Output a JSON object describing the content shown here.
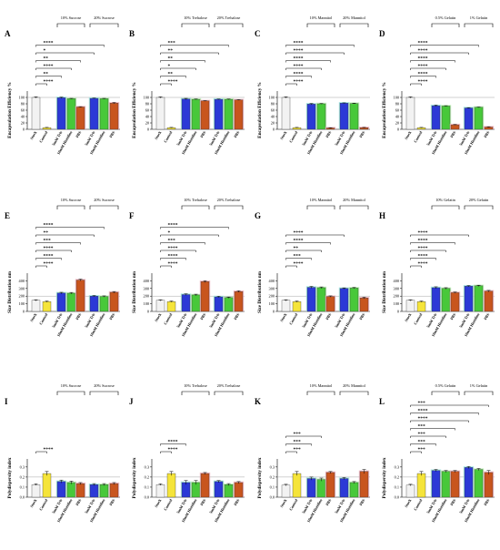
{
  "panels": [
    {
      "letter": "A",
      "ylabel": "Encapsulation Efficiency %",
      "yticks": [
        "0",
        "20",
        "40",
        "60",
        "80",
        "100"
      ],
      "ymax": 120,
      "ref": 100,
      "groups": [
        "10% Sucrose",
        "20% Sucrose"
      ],
      "stars": [
        "****",
        "**",
        "****",
        "**",
        "*",
        "****"
      ]
    },
    {
      "letter": "B",
      "ylabel": "Encapsulation Efficiency %",
      "yticks": [
        "0",
        "20",
        "40",
        "60",
        "80",
        "100"
      ],
      "ymax": 120,
      "ref": 100,
      "groups": [
        "10% Trehalose",
        "20% Trehalose"
      ],
      "stars": [
        "****",
        "**",
        "*",
        "**",
        "**",
        "***"
      ]
    },
    {
      "letter": "C",
      "ylabel": "Encapsulation Efficiency %",
      "yticks": [
        "0",
        "20",
        "40",
        "60",
        "80",
        "100"
      ],
      "ymax": 120,
      "ref": 100,
      "groups": [
        "10% Mannitol",
        "20% Mannitol"
      ],
      "stars": [
        "****",
        "****",
        "****",
        "****",
        "****",
        "****"
      ]
    },
    {
      "letter": "D",
      "ylabel": "Encapsulation Efficiency %",
      "yticks": [
        "0",
        "20",
        "40",
        "60",
        "80",
        "100"
      ],
      "ymax": 120,
      "ref": 100,
      "groups": [
        "0.5% Gelatin",
        "1% Gelatin"
      ],
      "stars": [
        "****",
        "****",
        "****",
        "****",
        "****",
        "****"
      ]
    },
    {
      "letter": "E",
      "ylabel": "Size Distribution nm",
      "yticks": [
        "0",
        "100",
        "200",
        "300",
        "400"
      ],
      "ymax": 500,
      "ref": 200,
      "groups": [
        "10% Sucrose",
        "20% Sucrose"
      ],
      "stars": [
        "****",
        "****",
        "****",
        "***",
        "**",
        "****"
      ]
    },
    {
      "letter": "F",
      "ylabel": "Size Distribution nm",
      "yticks": [
        "0",
        "100",
        "200",
        "300",
        "400"
      ],
      "ymax": 500,
      "ref": 200,
      "groups": [
        "10% Trehalose",
        "20% Trehalose"
      ],
      "stars": [
        "****",
        "****",
        "****",
        "***",
        "*",
        "****"
      ]
    },
    {
      "letter": "G",
      "ylabel": "Size Distribution nm",
      "yticks": [
        "0",
        "100",
        "200",
        "300",
        "400"
      ],
      "ymax": 500,
      "ref": 200,
      "groups": [
        "10% Mannitol",
        "20% Mannitol"
      ],
      "stars": [
        "****",
        "***",
        "**",
        "****",
        "****"
      ]
    },
    {
      "letter": "H",
      "ylabel": "Size Distribution nm",
      "yticks": [
        "0",
        "100",
        "200",
        "300",
        "400"
      ],
      "ymax": 500,
      "ref": 200,
      "groups": [
        "10% Gelatin",
        "20% Gelatin"
      ],
      "stars": [
        "****",
        "****",
        "****",
        "****",
        "****"
      ]
    },
    {
      "letter": "I",
      "ylabel": "Polydispersity index",
      "yticks": [
        "0.0",
        "0.1",
        "0.2",
        "0.3"
      ],
      "ymax": 0.38,
      "ref": 0.2,
      "groups": [
        "10% Sucrose",
        "20% Sucrose"
      ],
      "stars": [
        "****"
      ]
    },
    {
      "letter": "J",
      "ylabel": "Polydispersity index",
      "yticks": [
        "0.0",
        "0.1",
        "0.2",
        "0.3"
      ],
      "ymax": 0.38,
      "ref": 0.2,
      "groups": [
        "10% Trehalose",
        "20% Trehalose"
      ],
      "stars": [
        "****",
        "****"
      ]
    },
    {
      "letter": "K",
      "ylabel": "Polydispersity index",
      "yticks": [
        "0.0",
        "0.1",
        "0.2",
        "0.3"
      ],
      "ymax": 0.38,
      "ref": 0.2,
      "groups": [
        "10% Mannitol",
        "20% Mannitol"
      ],
      "stars": [
        "***",
        "***",
        "***"
      ]
    },
    {
      "letter": "L",
      "ylabel": "Polydispersity index",
      "yticks": [
        "0.0",
        "0.1",
        "0.2",
        "0.3"
      ],
      "ymax": 0.38,
      "ref": 0.2,
      "groups": [
        "0.5% Gelatin",
        "1% Gelatin"
      ],
      "stars": [
        "***",
        "***",
        "***",
        "***",
        "****",
        "****",
        "***"
      ]
    }
  ],
  "chart_data": [
    {
      "type": "bar",
      "panel": "A",
      "categories": [
        "Stock",
        "Control",
        "5mM Tris",
        "10mM Histidine",
        "PBS",
        "5mM Tris",
        "10mM Histidine",
        "PBS"
      ],
      "values": [
        100,
        5,
        99,
        96,
        70,
        97,
        96,
        82
      ],
      "errors": [
        2,
        1,
        2,
        1,
        1,
        1,
        1,
        2
      ],
      "ylabel": "Encapsulation Efficiency %",
      "ylim": [
        0,
        120
      ]
    },
    {
      "type": "bar",
      "panel": "B",
      "categories": [
        "Stock",
        "Control",
        "5mM Tris",
        "10mM Histidine",
        "PBS",
        "5mM Tris",
        "10mM Histidine",
        "PBS"
      ],
      "values": [
        100,
        5,
        95,
        94,
        89,
        94,
        94,
        92
      ],
      "errors": [
        2,
        1,
        2,
        1,
        1,
        1,
        1,
        1
      ],
      "ylabel": "Encapsulation Efficiency %",
      "ylim": [
        0,
        120
      ]
    },
    {
      "type": "bar",
      "panel": "C",
      "categories": [
        "Stock",
        "Control",
        "5mM Tris",
        "10mM Histidine",
        "PBS",
        "5mM Tris",
        "10mM Histidine",
        "PBS"
      ],
      "values": [
        100,
        5,
        79,
        80,
        4,
        82,
        81,
        5
      ],
      "errors": [
        2,
        1,
        2,
        1,
        1,
        1,
        1,
        1
      ],
      "ylabel": "Encapsulation Efficiency %",
      "ylim": [
        0,
        120
      ]
    },
    {
      "type": "bar",
      "panel": "D",
      "categories": [
        "Stock",
        "Control",
        "5mM Tris",
        "10mM Histidine",
        "PBS",
        "5mM Tris",
        "10mM Histidine",
        "PBS"
      ],
      "values": [
        100,
        5,
        74,
        73,
        14,
        67,
        69,
        7
      ],
      "errors": [
        2,
        1,
        2,
        1,
        1,
        1,
        1,
        1
      ],
      "ylabel": "Encapsulation Efficiency %",
      "ylim": [
        0,
        120
      ]
    },
    {
      "type": "bar",
      "panel": "E",
      "categories": [
        "Stock",
        "Control",
        "5mM Tris",
        "10mM Histidine",
        "PBS",
        "5mM Tris",
        "10mM Histidine",
        "PBS"
      ],
      "values": [
        145,
        128,
        240,
        238,
        410,
        200,
        195,
        250
      ],
      "errors": [
        8,
        8,
        10,
        10,
        12,
        8,
        8,
        10
      ],
      "ylabel": "Size Distribution nm",
      "ylim": [
        0,
        500
      ]
    },
    {
      "type": "bar",
      "panel": "F",
      "categories": [
        "Stock",
        "Control",
        "5mM Tris",
        "10mM Histidine",
        "PBS",
        "5mM Tris",
        "10mM Histidine",
        "PBS"
      ],
      "values": [
        145,
        128,
        220,
        215,
        390,
        190,
        180,
        260
      ],
      "errors": [
        8,
        8,
        10,
        10,
        12,
        8,
        8,
        10
      ],
      "ylabel": "Size Distribution nm",
      "ylim": [
        0,
        500
      ]
    },
    {
      "type": "bar",
      "panel": "G",
      "categories": [
        "Stock",
        "Control",
        "5mM Tris",
        "10mM Histidine",
        "PBS",
        "5mM Tris",
        "10mM Histidine",
        "PBS"
      ],
      "values": [
        145,
        128,
        315,
        310,
        195,
        300,
        305,
        175
      ],
      "errors": [
        8,
        8,
        12,
        10,
        8,
        8,
        8,
        10
      ],
      "ylabel": "Size Distribution nm",
      "ylim": [
        0,
        500
      ]
    },
    {
      "type": "bar",
      "panel": "H",
      "categories": [
        "Stock",
        "Control",
        "5mM Tris",
        "10mM Histidine",
        "PBS",
        "5mM Tris",
        "10mM Histidine",
        "PBS"
      ],
      "values": [
        145,
        128,
        310,
        300,
        245,
        330,
        335,
        265
      ],
      "errors": [
        8,
        8,
        12,
        10,
        8,
        8,
        8,
        10
      ],
      "ylabel": "Size Distribution nm",
      "ylim": [
        0,
        500
      ]
    },
    {
      "type": "bar",
      "panel": "I",
      "categories": [
        "Stock",
        "Control",
        "5mM Tris",
        "10mM Histidine",
        "PBS",
        "5mM Tris",
        "10mM Histidine",
        "PBS"
      ],
      "values": [
        0.125,
        0.235,
        0.155,
        0.145,
        0.135,
        0.125,
        0.125,
        0.135
      ],
      "errors": [
        0.008,
        0.02,
        0.015,
        0.015,
        0.01,
        0.01,
        0.01,
        0.01
      ],
      "ylabel": "Polydispersity index",
      "ylim": [
        0,
        0.38
      ]
    },
    {
      "type": "bar",
      "panel": "J",
      "categories": [
        "Stock",
        "Control",
        "5mM Tris",
        "10mM Histidine",
        "PBS",
        "5mM Tris",
        "10mM Histidine",
        "PBS"
      ],
      "values": [
        0.125,
        0.235,
        0.145,
        0.145,
        0.235,
        0.155,
        0.125,
        0.145
      ],
      "errors": [
        0.008,
        0.02,
        0.02,
        0.02,
        0.01,
        0.01,
        0.01,
        0.01
      ],
      "ylabel": "Polydispersity index",
      "ylim": [
        0,
        0.38
      ]
    },
    {
      "type": "bar",
      "panel": "K",
      "categories": [
        "Stock",
        "Control",
        "5mM Tris",
        "10mM Histidine",
        "PBS",
        "5mM Tris",
        "10mM Histidine",
        "PBS"
      ],
      "values": [
        0.12,
        0.235,
        0.185,
        0.175,
        0.245,
        0.185,
        0.145,
        0.255
      ],
      "errors": [
        0.008,
        0.02,
        0.015,
        0.015,
        0.01,
        0.01,
        0.01,
        0.02
      ],
      "ylabel": "Polydispersity index",
      "ylim": [
        0,
        0.38
      ]
    },
    {
      "type": "bar",
      "panel": "L",
      "categories": [
        "Stock",
        "Control",
        "5mM Tris",
        "10mM Histidine",
        "PBS",
        "5mM Tris",
        "10mM Histidine",
        "PBS"
      ],
      "values": [
        0.12,
        0.235,
        0.265,
        0.255,
        0.255,
        0.295,
        0.275,
        0.245
      ],
      "errors": [
        0.008,
        0.02,
        0.01,
        0.01,
        0.01,
        0.01,
        0.01,
        0.02
      ],
      "ylabel": "Polydispersity index",
      "ylim": [
        0,
        0.38
      ]
    }
  ],
  "colors": [
    "#f2f2f2",
    "#f5e43a",
    "#2b39d6",
    "#48c83a",
    "#c8551e",
    "#2b39d6",
    "#48c83a",
    "#c8551e"
  ],
  "halos": [
    "",
    "",
    "#9be3e3",
    "#b8f0b0",
    "#f3b4bf",
    "#9be3e3",
    "#b8f0b0",
    "#f3b4bf"
  ]
}
